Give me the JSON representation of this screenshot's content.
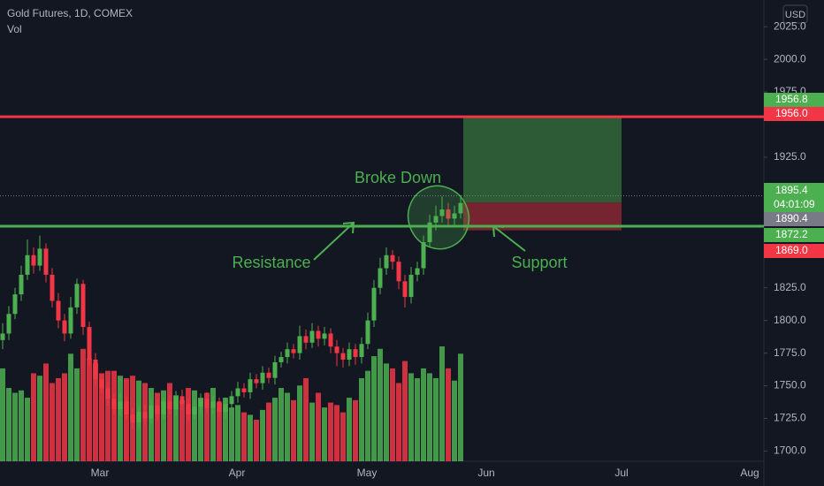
{
  "chart_data": {
    "type": "candlestick",
    "title": "Gold Futures, 1D, COMEX",
    "volume_label": "Vol",
    "currency": "USD",
    "up_color": "#4caf50",
    "down_color": "#f23645",
    "open": [
      1785,
      1790,
      1805,
      1820,
      1835,
      1850,
      1842,
      1855,
      1835,
      1815,
      1800,
      1790,
      1810,
      1828,
      1795,
      1770,
      1755,
      1748,
      1740,
      1732,
      1738,
      1728,
      1722,
      1730,
      1725,
      1735,
      1728,
      1738,
      1732,
      1742,
      1736,
      1728,
      1734,
      1740,
      1733,
      1738,
      1730,
      1736,
      1742,
      1748,
      1745,
      1755,
      1752,
      1760,
      1756,
      1768,
      1772,
      1778,
      1775,
      1788,
      1783,
      1792,
      1786,
      1790,
      1780,
      1775,
      1770,
      1778,
      1772,
      1782,
      1800,
      1825,
      1840,
      1850,
      1845,
      1830,
      1818,
      1835,
      1840,
      1860,
      1875,
      1880,
      1885,
      1878,
      1882
    ],
    "high": [
      1798,
      1811,
      1825,
      1842,
      1862,
      1856,
      1865,
      1859,
      1840,
      1821,
      1805,
      1818,
      1832,
      1831,
      1799,
      1775,
      1759,
      1753,
      1744,
      1744,
      1742,
      1733,
      1734,
      1735,
      1739,
      1740,
      1741,
      1743,
      1746,
      1747,
      1740,
      1739,
      1744,
      1745,
      1742,
      1741,
      1741,
      1746,
      1753,
      1752,
      1760,
      1759,
      1765,
      1764,
      1773,
      1776,
      1783,
      1782,
      1796,
      1793,
      1798,
      1796,
      1795,
      1794,
      1785,
      1779,
      1783,
      1782,
      1787,
      1806,
      1831,
      1848,
      1856,
      1854,
      1849,
      1835,
      1841,
      1845,
      1865,
      1881,
      1888,
      1895,
      1890,
      1888,
      1896
    ],
    "low": [
      1778,
      1785,
      1801,
      1815,
      1831,
      1836,
      1838,
      1829,
      1810,
      1794,
      1784,
      1786,
      1805,
      1789,
      1765,
      1750,
      1744,
      1735,
      1728,
      1727,
      1724,
      1717,
      1718,
      1720,
      1721,
      1723,
      1724,
      1728,
      1727,
      1732,
      1723,
      1724,
      1729,
      1729,
      1728,
      1726,
      1725,
      1732,
      1737,
      1741,
      1740,
      1748,
      1747,
      1752,
      1751,
      1764,
      1767,
      1771,
      1770,
      1778,
      1779,
      1780,
      1781,
      1775,
      1765,
      1764,
      1765,
      1766,
      1767,
      1778,
      1795,
      1820,
      1835,
      1839,
      1824,
      1810,
      1813,
      1830,
      1835,
      1856,
      1869,
      1875,
      1873,
      1872,
      1878
    ],
    "close": [
      1790,
      1805,
      1820,
      1835,
      1850,
      1842,
      1855,
      1835,
      1815,
      1800,
      1790,
      1810,
      1828,
      1795,
      1770,
      1755,
      1748,
      1740,
      1732,
      1738,
      1728,
      1722,
      1730,
      1725,
      1735,
      1728,
      1738,
      1732,
      1742,
      1736,
      1728,
      1734,
      1740,
      1733,
      1738,
      1730,
      1736,
      1742,
      1748,
      1745,
      1755,
      1752,
      1760,
      1756,
      1768,
      1772,
      1778,
      1775,
      1788,
      1783,
      1792,
      1786,
      1790,
      1780,
      1775,
      1770,
      1778,
      1772,
      1782,
      1800,
      1825,
      1840,
      1850,
      1845,
      1830,
      1818,
      1835,
      1840,
      1860,
      1875,
      1880,
      1885,
      1878,
      1882,
      1890
    ],
    "volume": [
      190,
      150,
      140,
      145,
      130,
      180,
      175,
      200,
      160,
      170,
      180,
      220,
      190,
      230,
      210,
      200,
      180,
      185,
      185,
      175,
      170,
      175,
      165,
      160,
      150,
      140,
      145,
      160,
      135,
      125,
      150,
      145,
      130,
      140,
      150,
      120,
      130,
      110,
      115,
      100,
      95,
      85,
      105,
      120,
      130,
      150,
      140,
      125,
      155,
      170,
      120,
      140,
      110,
      120,
      115,
      100,
      130,
      125,
      170,
      185,
      215,
      230,
      200,
      190,
      160,
      205,
      180,
      170,
      190,
      180,
      170,
      235,
      190,
      165,
      220
    ],
    "ylim": [
      1680,
      2040
    ],
    "yticks": [
      {
        "value": 2025,
        "label": "2025.0"
      },
      {
        "value": 2000,
        "label": "2000.0"
      },
      {
        "value": 1975,
        "label": "1975.0"
      },
      {
        "value": 1925,
        "label": "1925.0"
      },
      {
        "value": 1825,
        "label": "1825.0"
      },
      {
        "value": 1800,
        "label": "1800.0"
      },
      {
        "value": 1775,
        "label": "1775.0"
      },
      {
        "value": 1750,
        "label": "1750.0"
      },
      {
        "value": 1725,
        "label": "1725.0"
      },
      {
        "value": 1700,
        "label": "1700.0"
      }
    ],
    "months": [
      "Mar",
      "Apr",
      "May",
      "Jun",
      "Jul",
      "Aug"
    ],
    "price_labels": [
      {
        "value": 1956.8,
        "color": "#4caf50"
      },
      {
        "value": 1956,
        "label": "1956.0",
        "color": "#f23645"
      },
      {
        "value": 1895.4,
        "color": "#4caf50"
      },
      {
        "value": 1890.4,
        "color": "#787b86"
      },
      {
        "value": 1872.2,
        "color": "#4caf50"
      },
      {
        "value": 1869,
        "label": "1869.0",
        "color": "#f23645"
      }
    ],
    "countdown": "04:01:09",
    "annotations": [
      "Broke Down",
      "Resistance",
      "Support"
    ]
  }
}
